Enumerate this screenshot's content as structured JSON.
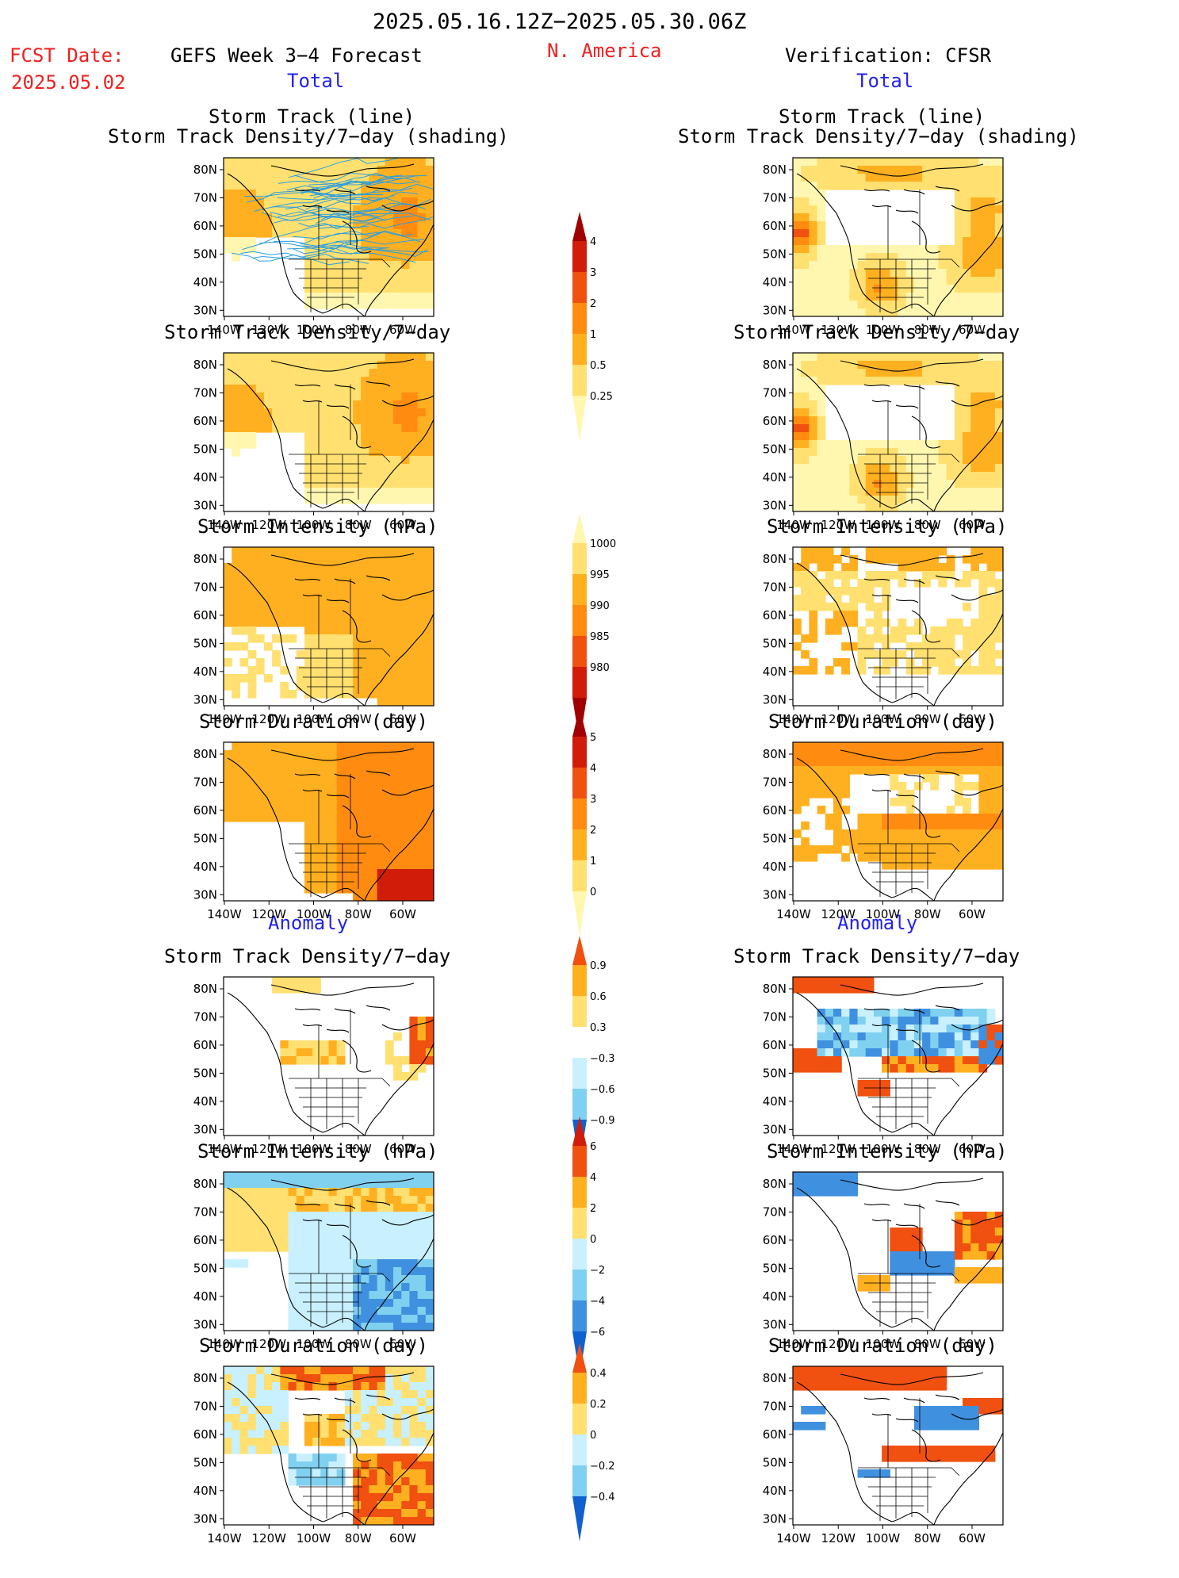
{
  "header": {
    "date_range": "2025.05.16.12Z−2025.05.30.06Z",
    "fcst_label": "FCST Date:",
    "fcst_date": "2025.05.02",
    "region": "N. America",
    "left_title": "GEFS Week 3−4 Forecast",
    "right_title": "Verification: CFSR",
    "left_total": "Total",
    "right_total": "Total",
    "left_anomaly": "Anomaly",
    "right_anomaly": "Anomaly"
  },
  "map_axes": {
    "lat_labels": [
      "80N",
      "70N",
      "60N",
      "50N",
      "40N",
      "30N"
    ],
    "lon_labels": [
      "140W",
      "120W",
      "100W",
      "80W",
      "60W"
    ]
  },
  "panels": {
    "track_title_1": "Storm Track (line)",
    "track_title_2": "Storm Track Density/7−day (shading)",
    "density": "Storm Track Density/7−day",
    "intensity": "Storm Intensity (hPa)",
    "duration": "Storm Duration (day)"
  },
  "colorbars": {
    "density_total": [
      "4",
      "3",
      "2",
      "1",
      "0.5",
      "0.25"
    ],
    "intensity_total": [
      "1000",
      "995",
      "990",
      "985",
      "980"
    ],
    "duration_total": [
      "5",
      "4",
      "3",
      "2",
      "1",
      "0"
    ],
    "density_anom": [
      "0.9",
      "0.6",
      "0.3",
      "−0.3",
      "−0.6",
      "−0.9"
    ],
    "intensity_anom": [
      "6",
      "4",
      "2",
      "0",
      "−2",
      "−4",
      "−6"
    ],
    "duration_anom": [
      "0.4",
      "0.2",
      "0",
      "−0.2",
      "−0.4"
    ]
  },
  "colors": {
    "warm": [
      "#fff7b0",
      "#ffe070",
      "#ffb020",
      "#ff8c10",
      "#f05010",
      "#d01c08",
      "#a00000"
    ],
    "cool": [
      "#c8f0ff",
      "#80d0f0",
      "#4090e0",
      "#1060d0"
    ],
    "track_line": "#2a9ee0"
  }
}
